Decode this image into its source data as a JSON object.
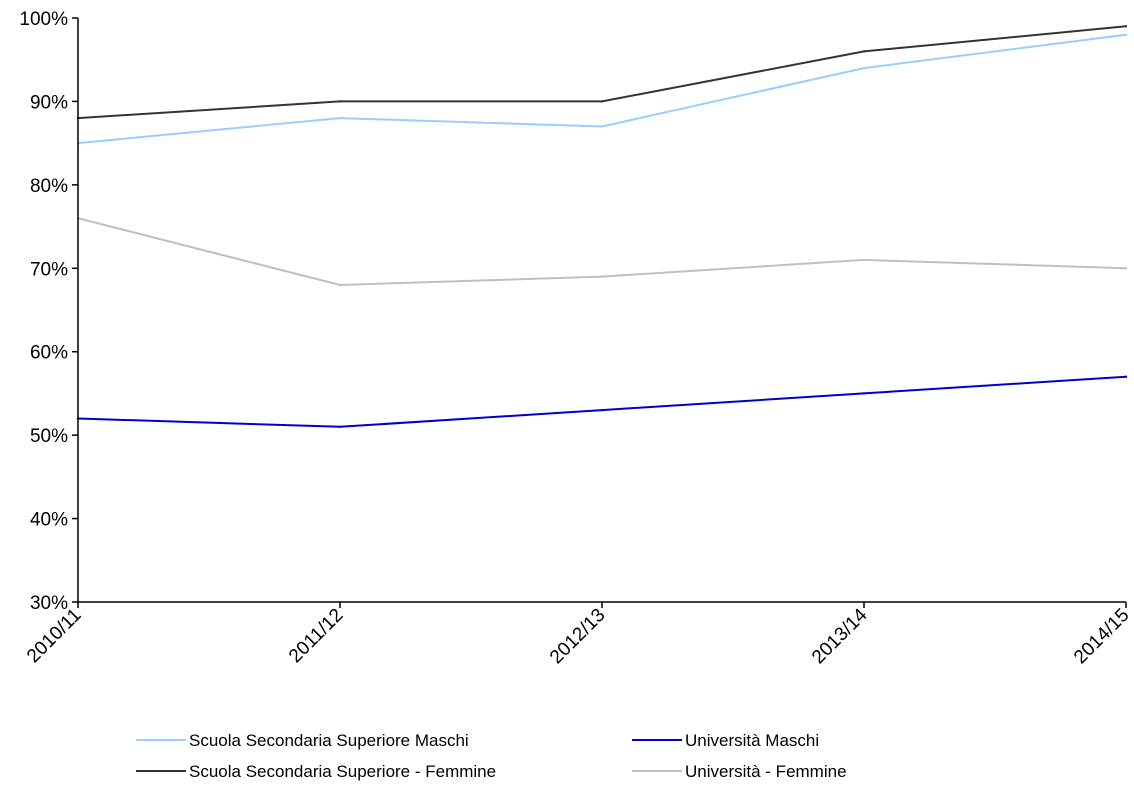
{
  "chart_data": {
    "type": "line",
    "title": "",
    "xlabel": "",
    "ylabel": "",
    "categories": [
      "2010/11",
      "2011/12",
      "2012/13",
      "2013/14",
      "2014/15"
    ],
    "y_ticks": [
      "30%",
      "40%",
      "50%",
      "60%",
      "70%",
      "80%",
      "90%",
      "100%"
    ],
    "ylim": [
      30,
      100
    ],
    "grid": false,
    "legend_position": "bottom",
    "series": [
      {
        "name": "Scuola Secondaria Superiore Maschi",
        "color": "#99CCFF",
        "values": [
          85,
          88,
          87,
          94,
          98
        ]
      },
      {
        "name": "Università Maschi",
        "color": "#0000CC",
        "values": [
          52,
          51,
          53,
          55,
          57
        ]
      },
      {
        "name": "Scuola Secondaria Superiore - Femmine",
        "color": "#333333",
        "values": [
          88,
          90,
          90,
          96,
          99
        ]
      },
      {
        "name": "Università - Femmine",
        "color": "#BFBFBF",
        "values": [
          76,
          68,
          69,
          71,
          70
        ]
      }
    ]
  }
}
